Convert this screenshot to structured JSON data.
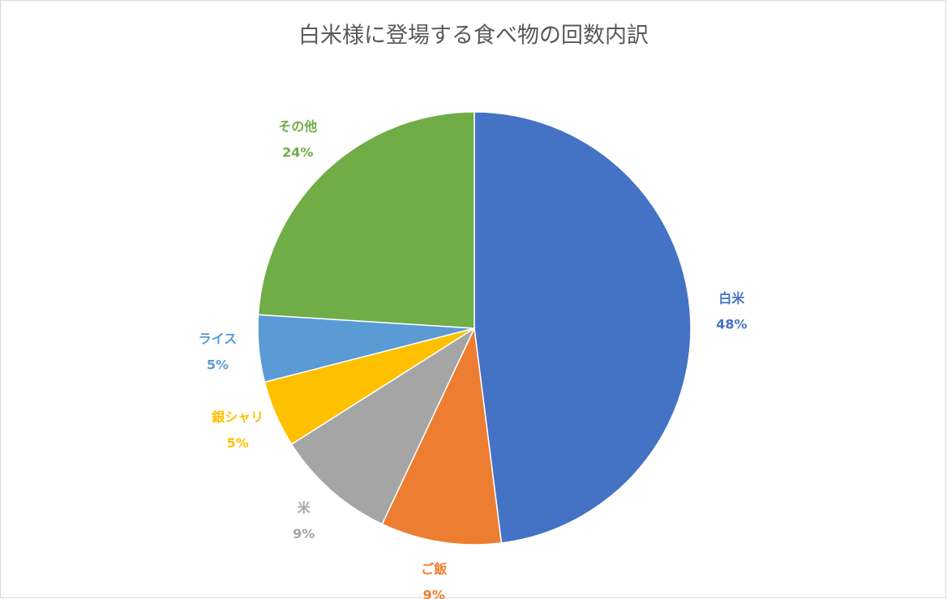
{
  "chart_data": {
    "type": "pie",
    "title": "白米様に登場する食べ物の回数内訳",
    "categories": [
      "白米",
      "ご飯",
      "米",
      "銀シャリ",
      "ライス",
      "その他"
    ],
    "values": [
      48,
      9,
      9,
      5,
      5,
      24
    ],
    "value_labels": [
      "48%",
      "9%",
      "9%",
      "5%",
      "5%",
      "24%"
    ],
    "colors": [
      "#4472c4",
      "#ed7d31",
      "#a5a5a5",
      "#ffc000",
      "#5b9bd5",
      "#70ad47"
    ]
  }
}
